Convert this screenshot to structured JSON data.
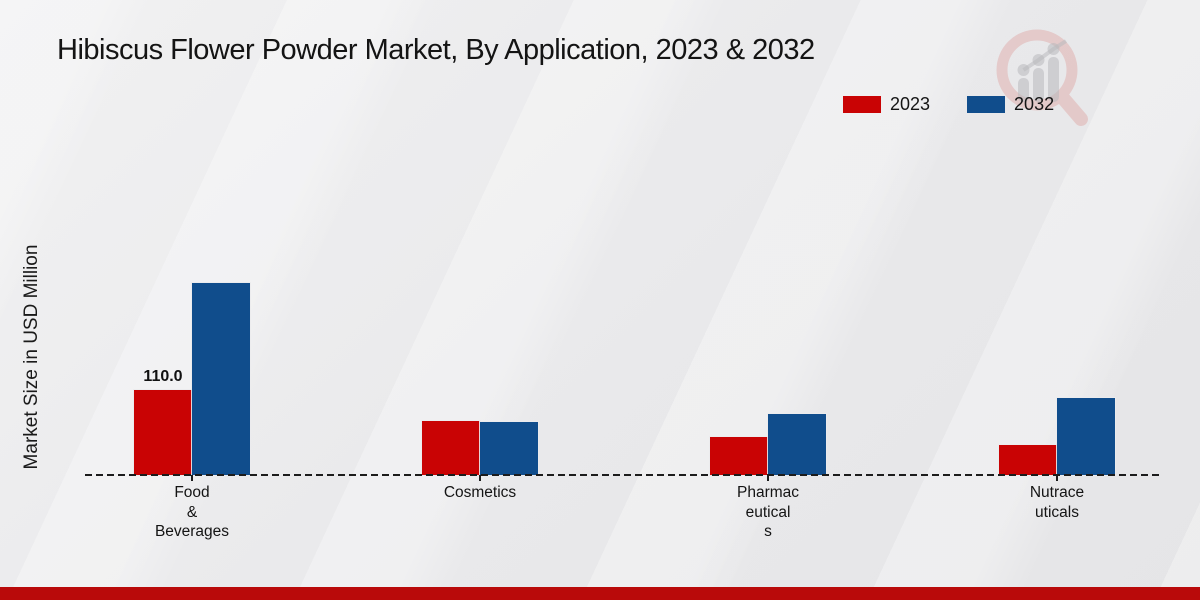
{
  "chart_data": {
    "type": "bar",
    "title": "Hibiscus Flower Powder Market, By Application, 2023 & 2032",
    "xlabel": "",
    "ylabel": "Market Size in USD Million",
    "categories": [
      "Food & Beverages",
      "Cosmetics",
      "Pharmaceuticals",
      "Nutraceuticals"
    ],
    "category_label_lines": [
      [
        "Food",
        "&",
        "Beverages"
      ],
      [
        "Cosmetics"
      ],
      [
        "Pharmac",
        "eutical",
        "s"
      ],
      [
        "Nutrace",
        "uticals"
      ]
    ],
    "series": [
      {
        "name": "2023",
        "color": "#c90304",
        "values": [
          110.0,
          70,
          49,
          39
        ]
      },
      {
        "name": "2032",
        "color": "#104d8c",
        "values": [
          249,
          69,
          79,
          100
        ]
      }
    ],
    "annotations": [
      {
        "series": "2023",
        "category": "Food & Beverages",
        "text": "110.0"
      }
    ],
    "ylim": [
      0,
      260
    ],
    "grid": false,
    "legend_position": "top-right",
    "baseline_style": "dashed"
  },
  "branding": {
    "bottom_strip_color": "#b90a0a",
    "watermark_icon": "magnifier-growth-chart-logo",
    "watermark_red": "#d98480",
    "watermark_gray": "#b9b9bd"
  }
}
